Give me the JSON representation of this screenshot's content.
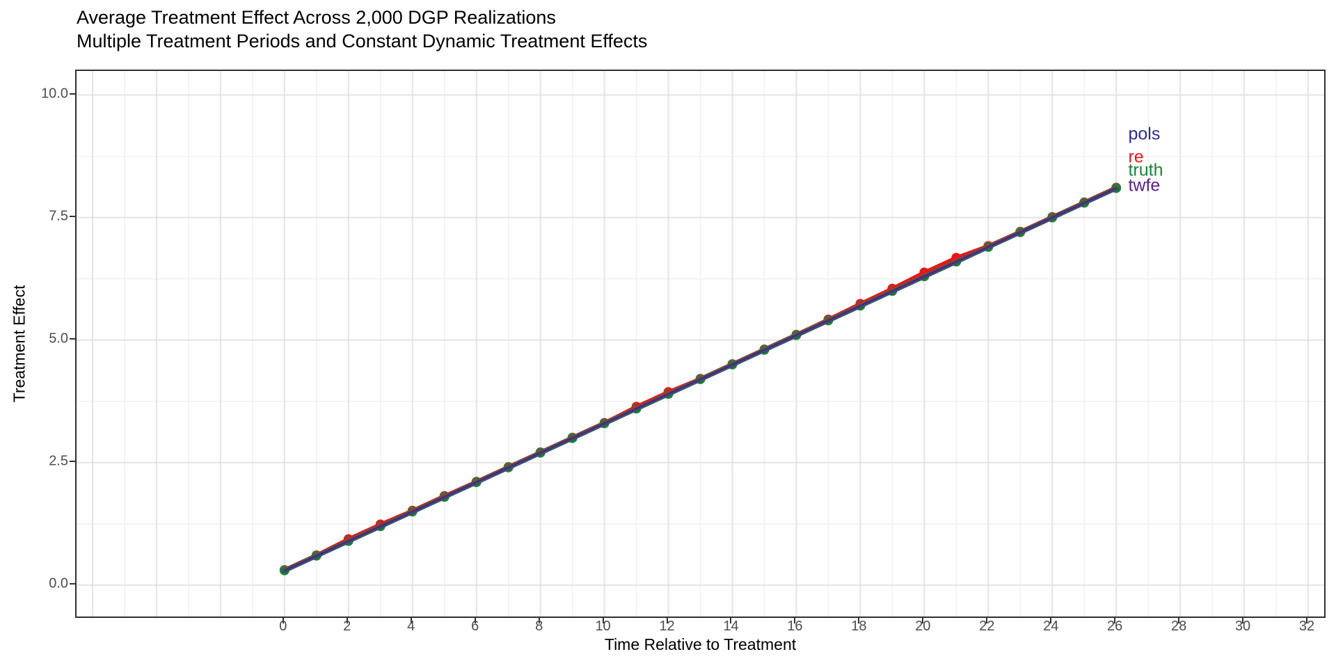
{
  "header": {
    "title": "Average Treatment Effect Across 2,000 DGP Realizations",
    "subtitle": "Multiple Treatment Periods and Constant Dynamic Treatment Effects"
  },
  "chart_data": {
    "type": "line",
    "title": "Average Treatment Effect Across 2,000 DGP Realizations",
    "subtitle": "Multiple Treatment Periods and Constant Dynamic Treatment Effects",
    "xlabel": "Time Relative to Treatment",
    "ylabel": "Treatment Effect",
    "x_range": [
      -6.5,
      32.5
    ],
    "y_range": [
      -0.64,
      10.49
    ],
    "grid": {
      "on": true,
      "major_color": "#e4e4e4",
      "minor_color": "#efefef",
      "x_major": [
        -6,
        -4,
        -2,
        0,
        2,
        4,
        6,
        8,
        10,
        12,
        14,
        16,
        18,
        20,
        22,
        24,
        26,
        28,
        30,
        32
      ],
      "x_minor": [
        -5,
        -3,
        -1,
        1,
        3,
        5,
        7,
        9,
        11,
        13,
        15,
        17,
        19,
        21,
        23,
        25,
        27,
        29,
        31
      ],
      "y_major": [
        0.0,
        2.5,
        5.0,
        7.5,
        10.0
      ],
      "y_minor": [
        1.25,
        3.75,
        6.25,
        8.75
      ]
    },
    "x_ticks": {
      "values": [
        0,
        2,
        4,
        6,
        8,
        10,
        12,
        14,
        16,
        18,
        20,
        22,
        24,
        26,
        28,
        30,
        32
      ],
      "labels": [
        "0",
        "2",
        "4",
        "6",
        "8",
        "10",
        "12",
        "14",
        "16",
        "18",
        "20",
        "22",
        "24",
        "26",
        "28",
        "30",
        "32"
      ]
    },
    "y_ticks": {
      "values": [
        0.0,
        2.5,
        5.0,
        7.5,
        10.0
      ],
      "labels": [
        "0.0",
        "2.5",
        "5.0",
        "7.5",
        "10.0"
      ]
    },
    "x": [
      0,
      1,
      2,
      3,
      4,
      5,
      6,
      7,
      8,
      9,
      10,
      11,
      12,
      13,
      14,
      15,
      16,
      17,
      18,
      19,
      20,
      21,
      22,
      23,
      24,
      25,
      26
    ],
    "series": [
      {
        "name": "pols",
        "color": "#2b2e8c",
        "linewidth": 7,
        "points": false,
        "values": [
          0.3,
          0.6,
          0.9,
          1.2,
          1.5,
          1.8,
          2.1,
          2.4,
          2.7,
          3.0,
          3.3,
          3.6,
          3.9,
          4.2,
          4.5,
          4.8,
          5.1,
          5.4,
          5.7,
          6.0,
          6.3,
          6.6,
          6.9,
          7.2,
          7.5,
          7.8,
          8.1
        ]
      },
      {
        "name": "re",
        "color": "#e2191b",
        "linewidth": 5.5,
        "points": true,
        "values": [
          0.31,
          0.61,
          0.94,
          1.24,
          1.52,
          1.82,
          2.11,
          2.41,
          2.71,
          3.01,
          3.31,
          3.64,
          3.94,
          4.21,
          4.51,
          4.81,
          5.11,
          5.42,
          5.74,
          6.05,
          6.38,
          6.68,
          6.92,
          7.21,
          7.51,
          7.81,
          8.11
        ]
      },
      {
        "name": "truth",
        "color": "#1f8038",
        "linewidth": 5.5,
        "points": true,
        "values": [
          0.3,
          0.6,
          0.9,
          1.2,
          1.5,
          1.8,
          2.1,
          2.4,
          2.7,
          3.0,
          3.3,
          3.6,
          3.9,
          4.2,
          4.5,
          4.8,
          5.1,
          5.4,
          5.7,
          6.0,
          6.3,
          6.6,
          6.9,
          7.2,
          7.5,
          7.8,
          8.1
        ]
      },
      {
        "name": "twfe",
        "color": "#5b2088",
        "linewidth": 3.2,
        "points": false,
        "values": [
          0.3,
          0.6,
          0.9,
          1.2,
          1.5,
          1.8,
          2.1,
          2.4,
          2.7,
          3.0,
          3.3,
          3.6,
          3.9,
          4.2,
          4.5,
          4.8,
          5.1,
          5.4,
          5.7,
          6.0,
          6.3,
          6.6,
          6.9,
          7.2,
          7.5,
          7.8,
          8.1
        ]
      }
    ],
    "point_radius": 7,
    "direct_labels": [
      {
        "series": "pols",
        "label": "pols",
        "x": 26.42,
        "y": 9.17
      },
      {
        "series": "re",
        "label": "re",
        "x": 26.42,
        "y": 8.7
      },
      {
        "series": "truth",
        "label": "truth",
        "x": 26.42,
        "y": 8.43
      },
      {
        "series": "twfe",
        "label": "twfe",
        "x": 26.42,
        "y": 8.12
      }
    ],
    "legend_position": "direct-labels-right"
  }
}
